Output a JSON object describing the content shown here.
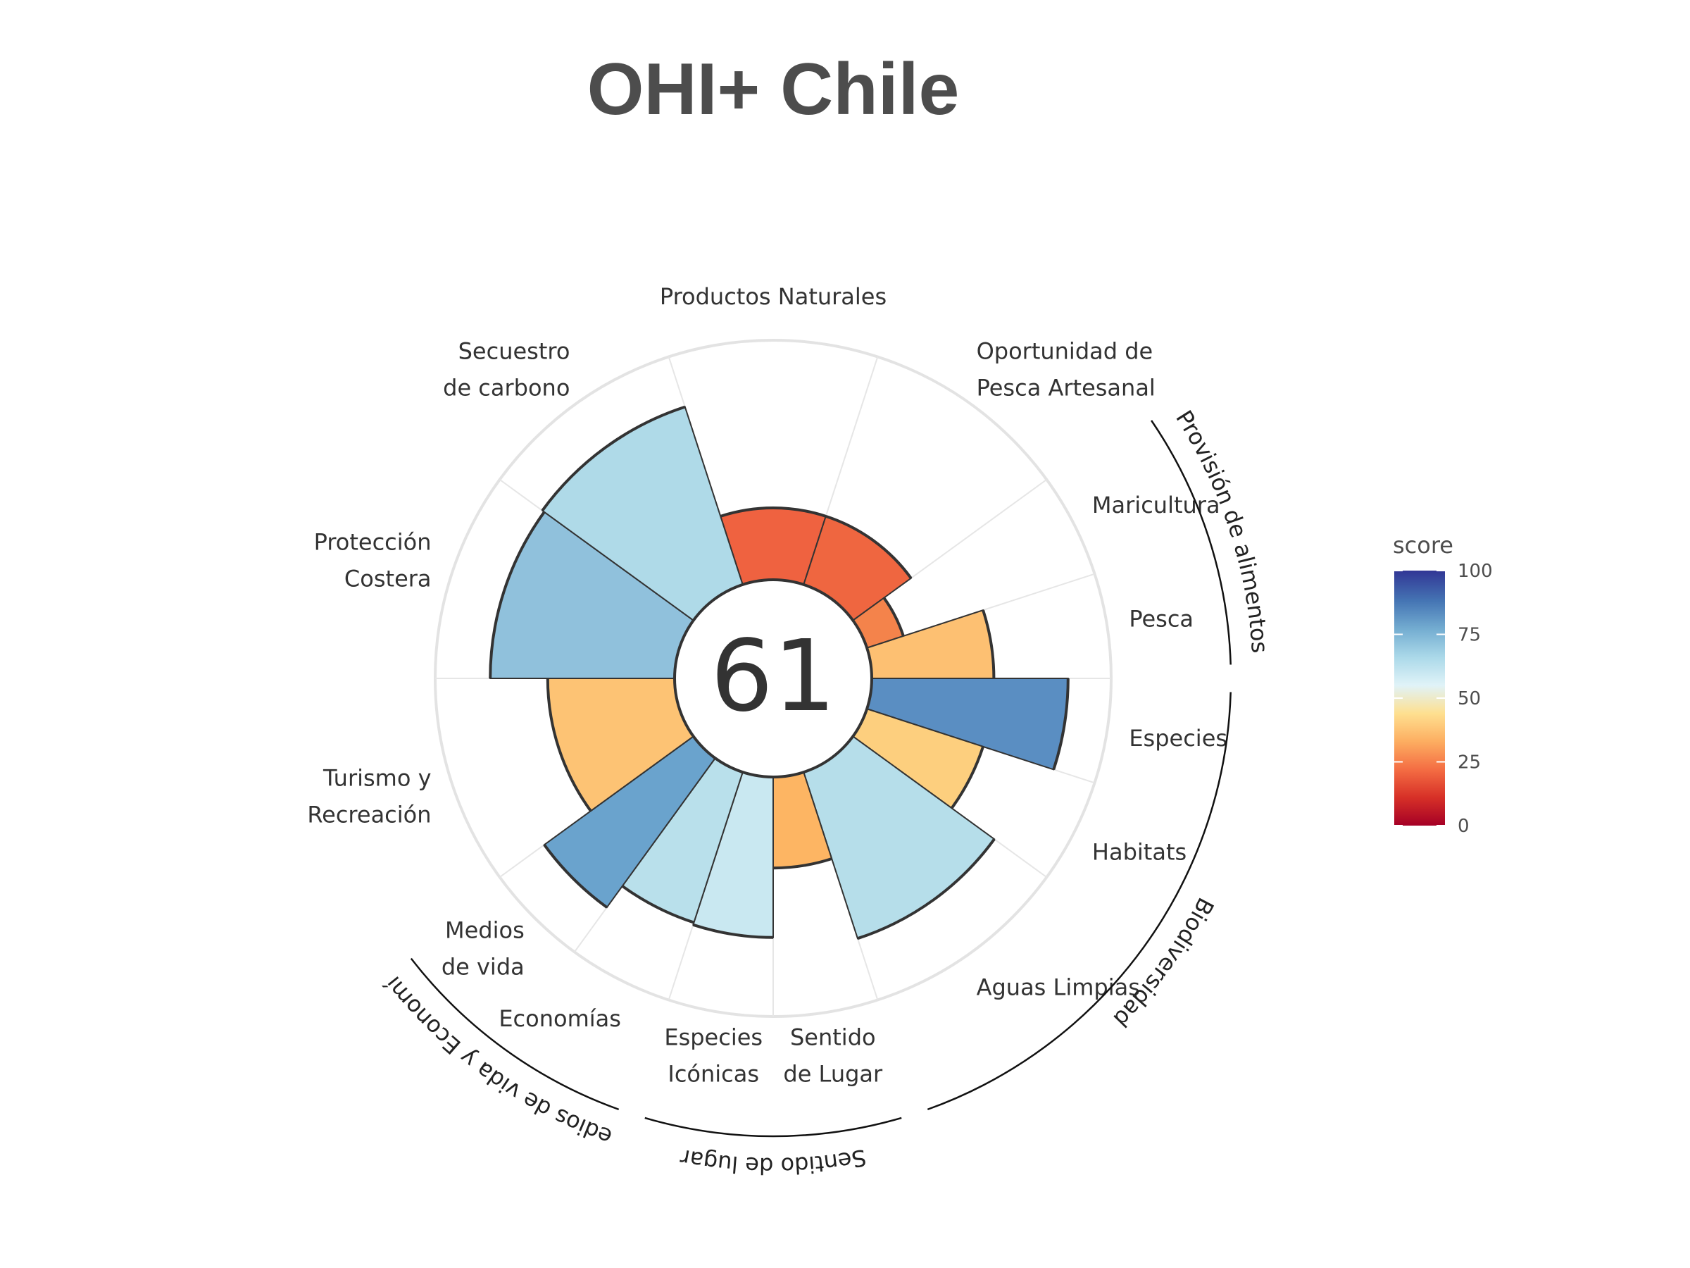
{
  "chart_data": {
    "type": "polar-bar",
    "title": "OHI+ Chile",
    "center_score": "61",
    "rlim": [
      0,
      100
    ],
    "grid": true,
    "legend_placement": "right",
    "colorbar": {
      "title": "score",
      "ticks": [
        "0",
        "25",
        "50",
        "75",
        "100"
      ],
      "range": [
        0,
        100
      ],
      "colors": [
        "#a50026",
        "#d73027",
        "#f46d43",
        "#fdae61",
        "#fee090",
        "#e0f3f8",
        "#abd9e9",
        "#74add1",
        "#4575b4",
        "#313695"
      ]
    },
    "goals": [
      {
        "label": [
          "Productos Naturales"
        ],
        "value": 30,
        "width": 1.0,
        "color": "#ef6240"
      },
      {
        "label": [
          "Oportunidad de",
          "Pesca Artesanal"
        ],
        "value": 30,
        "width": 1.0,
        "color": "#ef6640"
      },
      {
        "label": [
          "Maricultura"
        ],
        "value": 16,
        "width": 0.5,
        "color": "#f4834b"
      },
      {
        "label": [
          "Pesca"
        ],
        "value": 51,
        "width": 0.5,
        "color": "#fdc072"
      },
      {
        "label": [
          "Especies"
        ],
        "value": 82,
        "width": 0.5,
        "color": "#5a8ec2"
      },
      {
        "label": [
          "Habitats"
        ],
        "value": 51,
        "width": 0.5,
        "color": "#fdcf7e"
      },
      {
        "label": [
          "Aguas Limpias"
        ],
        "value": 73,
        "width": 1.0,
        "color": "#b6deea"
      },
      {
        "label": [
          "Sentido",
          "de Lugar"
        ],
        "value": 38,
        "width": 0.5,
        "color": "#fdb563"
      },
      {
        "label": [
          "Especies",
          "Icónicas"
        ],
        "value": 67,
        "width": 0.5,
        "color": "#c9e8f1"
      },
      {
        "label": [
          "Economías"
        ],
        "value": 66,
        "width": 0.5,
        "color": "#b9e0eb"
      },
      {
        "label": [
          "Medios",
          "de vida"
        ],
        "value": 77,
        "width": 0.5,
        "color": "#6aa3cd"
      },
      {
        "label": [
          "Turismo y",
          "Recreación"
        ],
        "value": 53,
        "width": 1.0,
        "color": "#fdc374"
      },
      {
        "label": [
          "Protección",
          "Costera"
        ],
        "value": 77,
        "width": 1.0,
        "color": "#90c1dc"
      },
      {
        "label": [
          "Secuestro",
          "de carbono"
        ],
        "value": 78,
        "width": 1.0,
        "color": "#afdae8"
      }
    ],
    "groups": [
      {
        "label": "Provisión de alimentos"
      },
      {
        "label": "Biodiversidad"
      },
      {
        "label": "Sentido de lugar"
      },
      {
        "label": "Medios de vida y Economías"
      }
    ]
  }
}
